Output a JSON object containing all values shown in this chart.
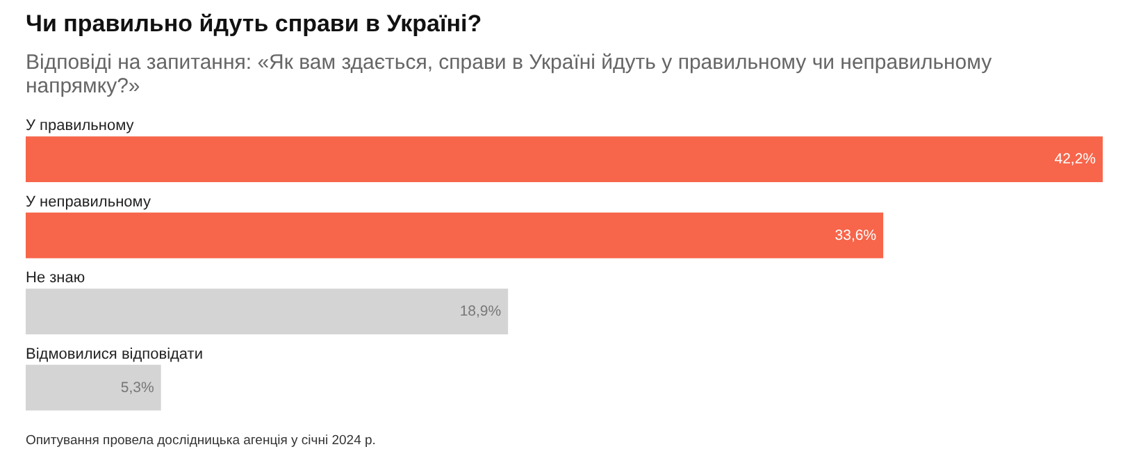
{
  "chart_data": {
    "type": "bar",
    "orientation": "horizontal",
    "title": "Чи правильно йдуть справи в Україні?",
    "subtitle": "Відповіді на запитання: «Як вам здається, справи в Україні йдуть у правильному чи неправильному\nнапрямку?»",
    "categories": [
      "У правильному",
      "У неправильному",
      "Не знаю",
      "Відмовилися відповідати"
    ],
    "values": [
      42.2,
      33.6,
      18.9,
      5.3
    ],
    "colors": [
      "#f7654a",
      "#f7654a",
      "#d4d4d4",
      "#d4d4d4"
    ],
    "value_labels": [
      "42,2%",
      "33,6%",
      "18,9%",
      "5,3%"
    ],
    "annotations": [
      "Опитування провела дослідницька агенція у січні 2024 р."
    ]
  }
}
